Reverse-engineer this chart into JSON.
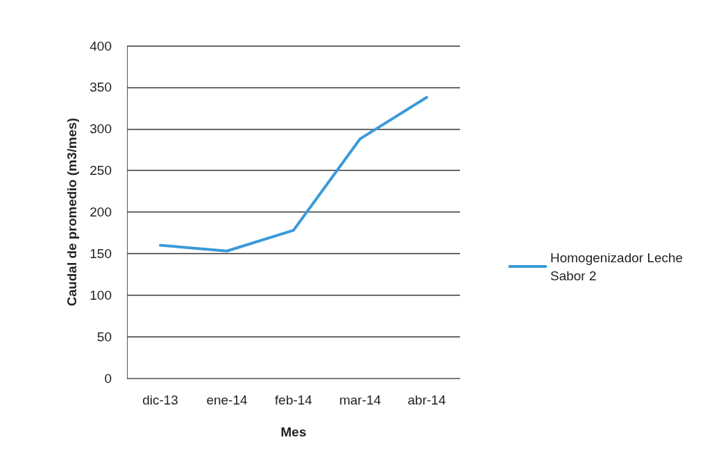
{
  "chart_data": {
    "type": "line",
    "xlabel": "Mes",
    "ylabel": "Caudal de promedio (m3/mes)",
    "categories": [
      "dic-13",
      "ene-14",
      "feb-14",
      "mar-14",
      "abr-14"
    ],
    "series": [
      {
        "name": "Homogenizador Leche Sabor 2",
        "color": "#3a9ad9",
        "values": [
          160,
          153,
          178,
          288,
          338
        ]
      }
    ],
    "ylim": [
      0,
      400
    ],
    "yticks": [
      0,
      50,
      100,
      150,
      200,
      250,
      300,
      350,
      400
    ],
    "grid": "y",
    "legend": "right",
    "marker": "none",
    "line_style": "solid"
  }
}
